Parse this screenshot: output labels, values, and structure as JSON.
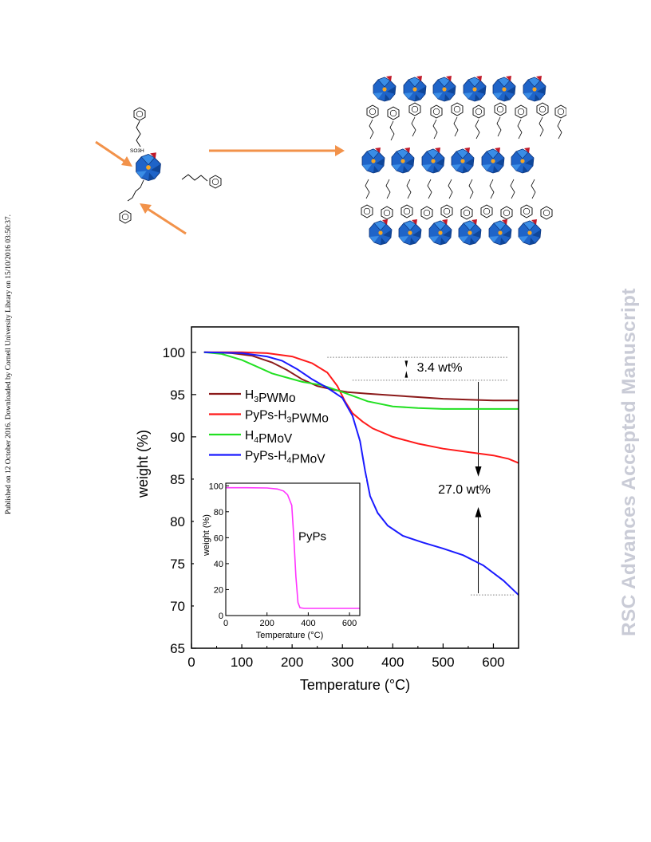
{
  "side_note": "Published on 12 October 2016. Downloaded by Cornell University Library on 15/10/2016 03:50:37.",
  "watermark": "RSC Advances Accepted Manuscript",
  "scheme": {
    "sulfonate_label": "SO3H"
  },
  "chart_data": [
    {
      "type": "line",
      "xlabel": "Temperature (°C)",
      "ylabel": "weight (%)",
      "xlim": [
        0,
        650
      ],
      "ylim": [
        65,
        103
      ],
      "xticks": [
        0,
        100,
        200,
        300,
        400,
        500,
        600
      ],
      "yticks": [
        65,
        70,
        75,
        80,
        85,
        90,
        95,
        100
      ],
      "legend_position": "center-left",
      "annotations": [
        "3.4 wt%",
        "27.0 wt%"
      ],
      "series": [
        {
          "name": "H3PWMo",
          "color": "#8b1a1a",
          "x": [
            25,
            80,
            120,
            160,
            190,
            220,
            250,
            280,
            310,
            350,
            400,
            450,
            500,
            550,
            600,
            650
          ],
          "y": [
            100,
            99.9,
            99.6,
            98.8,
            97.9,
            96.8,
            96.0,
            95.6,
            95.3,
            95.1,
            94.9,
            94.7,
            94.5,
            94.4,
            94.3,
            94.3
          ]
        },
        {
          "name": "PyPs-H3PWMo",
          "color": "#ff1a1a",
          "x": [
            25,
            100,
            150,
            200,
            240,
            270,
            290,
            305,
            320,
            340,
            360,
            400,
            450,
            500,
            550,
            600,
            630,
            650
          ],
          "y": [
            100,
            100,
            99.9,
            99.5,
            98.7,
            97.6,
            96.0,
            94.2,
            92.8,
            91.8,
            91.0,
            90.0,
            89.2,
            88.6,
            88.2,
            87.8,
            87.4,
            86.9
          ]
        },
        {
          "name": "H4PMoV",
          "color": "#22e022",
          "x": [
            25,
            60,
            100,
            130,
            160,
            190,
            220,
            260,
            300,
            350,
            400,
            450,
            500,
            550,
            600,
            650
          ],
          "y": [
            100,
            99.8,
            99.1,
            98.3,
            97.5,
            97.0,
            96.5,
            96.1,
            95.3,
            94.2,
            93.6,
            93.4,
            93.3,
            93.3,
            93.3,
            93.3
          ]
        },
        {
          "name": "PyPs-H4PMoV",
          "color": "#1a1aff",
          "x": [
            25,
            100,
            150,
            180,
            210,
            240,
            270,
            300,
            320,
            335,
            345,
            355,
            370,
            390,
            420,
            460,
            500,
            540,
            580,
            620,
            650
          ],
          "y": [
            100,
            99.9,
            99.5,
            99.0,
            98.0,
            96.8,
            95.8,
            94.6,
            92.5,
            89.5,
            86.0,
            83.0,
            81.0,
            79.5,
            78.3,
            77.5,
            76.8,
            76.0,
            74.8,
            73.0,
            71.3
          ]
        }
      ]
    },
    {
      "type": "line",
      "xlabel": "Temperature (°C)",
      "ylabel": "weight (%)",
      "xlim": [
        0,
        650
      ],
      "ylim": [
        0,
        102
      ],
      "xticks": [
        0,
        200,
        400,
        600
      ],
      "yticks": [
        0,
        20,
        40,
        60,
        80,
        100
      ],
      "series": [
        {
          "name": "PyPs",
          "color": "#ff33ff",
          "x": [
            0,
            100,
            200,
            250,
            280,
            300,
            320,
            330,
            340,
            350,
            360,
            380,
            450,
            550,
            650
          ],
          "y": [
            98.5,
            98.5,
            98.3,
            97.5,
            96,
            93,
            85,
            60,
            30,
            10,
            6,
            5.5,
            5.5,
            5.5,
            5.5
          ]
        }
      ]
    }
  ]
}
